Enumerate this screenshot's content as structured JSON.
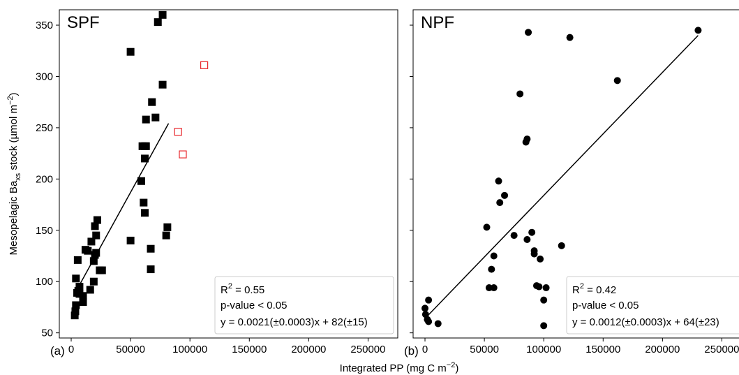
{
  "figure": {
    "xlabel": "Integrated PP (mg C m",
    "xlabel_sup": "−2",
    "xlabel_tail": ")",
    "ylabel_pre": "Mesopelagic Ba",
    "ylabel_sub": "xs",
    "ylabel_mid": " stock (µmol m",
    "ylabel_sup": "−2",
    "ylabel_tail": ")"
  },
  "chart_data": [
    {
      "type": "scatter",
      "panel_title": "SPF",
      "panel_letter": "(a)",
      "xlim": [
        -10000,
        275000
      ],
      "ylim": [
        45,
        365
      ],
      "xticks": [
        0,
        50000,
        100000,
        150000,
        200000,
        250000
      ],
      "yticks": [
        50,
        100,
        150,
        200,
        250,
        300,
        350
      ],
      "ytick_labels_visible": true,
      "marker": "square",
      "series": [
        {
          "filled": true,
          "color": "#000000",
          "x": [
            3000,
            3500,
            4000,
            4000,
            5000,
            5500,
            6000,
            7000,
            7000,
            10000,
            10000,
            12000,
            14000,
            16000,
            17000,
            19000,
            19000,
            20000,
            20000,
            21000,
            21000,
            22000,
            24000,
            26000,
            50000,
            50000,
            59000,
            60000,
            61000,
            62000,
            62000,
            62000,
            63000,
            63000,
            67000,
            67000,
            68000,
            71000,
            73000,
            77000,
            77000,
            80000,
            81000
          ],
          "y": [
            67,
            71,
            77,
            103,
            89,
            121,
            91,
            95,
            88,
            80,
            86,
            131,
            130,
            92,
            139,
            100,
            120,
            126,
            154,
            128,
            145,
            160,
            111,
            111,
            324,
            140,
            198,
            232,
            177,
            232,
            167,
            220,
            258,
            232,
            132,
            112,
            275,
            260,
            353,
            360,
            292,
            145,
            153
          ]
        },
        {
          "filled": false,
          "color": "#e8262a",
          "x": [
            90000,
            94000,
            112000
          ],
          "y": [
            246,
            224,
            311
          ]
        }
      ],
      "fit": {
        "x": [
          3000,
          82000
        ],
        "slope": 0.0021,
        "intercept": 82
      },
      "stats": {
        "r2_label": "R",
        "r2_sup": "2",
        "r2_value": " = 0.55",
        "p_value": "p-value < 0.05",
        "equation": "y = 0.0021(±0.0003)x + 82(±15)"
      }
    },
    {
      "type": "scatter",
      "panel_title": "NPF",
      "panel_letter": "(b)",
      "xlim": [
        -10000,
        275000
      ],
      "ylim": [
        45,
        365
      ],
      "xticks": [
        0,
        50000,
        100000,
        150000,
        200000,
        250000
      ],
      "yticks": [
        50,
        100,
        150,
        200,
        250,
        300,
        350
      ],
      "ytick_labels_visible": false,
      "marker": "circle",
      "series": [
        {
          "filled": true,
          "color": "#000000",
          "x": [
            0,
            500,
            2000,
            3000,
            3000,
            11000,
            52000,
            54000,
            56000,
            58000,
            58000,
            62000,
            63000,
            67000,
            75000,
            80000,
            85000,
            86000,
            86000,
            87000,
            90000,
            92000,
            92000,
            94000,
            96000,
            97000,
            100000,
            100000,
            102000,
            115000,
            122000,
            162000,
            230000
          ],
          "y": [
            74,
            68,
            63,
            61,
            82,
            59,
            153,
            94,
            112,
            94,
            125,
            198,
            177,
            184,
            145,
            283,
            236,
            239,
            141,
            343,
            148,
            130,
            127,
            96,
            95,
            122,
            82,
            57,
            94,
            135,
            338,
            296,
            345
          ]
        }
      ],
      "fit": {
        "x": [
          0,
          230000
        ],
        "slope": 0.0012,
        "intercept": 64
      },
      "stats": {
        "r2_label": "R",
        "r2_sup": "2",
        "r2_value": " = 0.42",
        "p_value": "p-value < 0.05",
        "equation": "y = 0.0012(±0.0003)x + 64(±23)"
      }
    }
  ]
}
